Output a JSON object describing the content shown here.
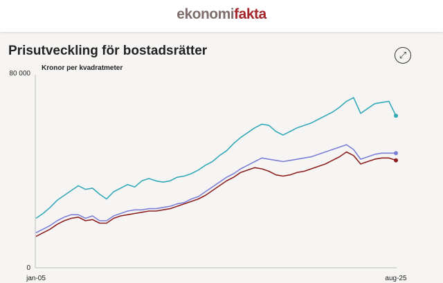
{
  "header": {
    "logo_part1": "ekonomi",
    "logo_part2": "fakta"
  },
  "chart_data": {
    "type": "line",
    "title": "Prisutveckling för bostadsrätter",
    "ylabel": "Kronor per kvadratmeter",
    "ylim": [
      0,
      80000
    ],
    "yticks": [
      "0",
      "80 000"
    ],
    "xticks": [
      "jan-05",
      "aug-25"
    ],
    "grid": false,
    "colors": [
      "#35a8b8",
      "#7b7fd6",
      "#8b1e1e"
    ],
    "series": [
      {
        "values": [
          20500,
          22500,
          25000,
          28000,
          30000,
          32000,
          34000,
          32500,
          33000,
          30500,
          28500,
          31500,
          33000,
          34500,
          33500,
          36000,
          37000,
          36000,
          35500,
          36000,
          37500,
          38000,
          39000,
          40500,
          42500,
          44000,
          46500,
          48500,
          51500,
          54000,
          56000,
          58000,
          59500,
          59000,
          56500,
          55000,
          56500,
          58000,
          59000,
          60000,
          61500,
          63000,
          64500,
          66500,
          69000,
          70500,
          64000,
          66000,
          68000,
          68500,
          69000,
          63000
        ]
      },
      {
        "values": [
          14500,
          16000,
          17500,
          19500,
          21000,
          22000,
          22000,
          20500,
          21500,
          19500,
          19500,
          21500,
          22500,
          23500,
          24000,
          24000,
          24500,
          24500,
          25000,
          25500,
          26500,
          27000,
          28500,
          29500,
          31500,
          33500,
          35500,
          37500,
          39000,
          41000,
          42500,
          44000,
          45500,
          45000,
          44500,
          44000,
          44500,
          45000,
          45500,
          46000,
          47000,
          48000,
          49000,
          50000,
          51000,
          49000,
          45000,
          46000,
          47000,
          47500,
          47500,
          47500
        ]
      },
      {
        "values": [
          13000,
          14500,
          16000,
          18000,
          19500,
          20500,
          21000,
          19500,
          20000,
          18500,
          18500,
          20500,
          21500,
          22000,
          22500,
          23000,
          23500,
          23500,
          24000,
          24500,
          25500,
          26500,
          27500,
          28500,
          30000,
          32000,
          34000,
          36000,
          37500,
          39500,
          40500,
          41500,
          41000,
          40000,
          38500,
          38000,
          38500,
          39500,
          40000,
          41000,
          42000,
          43000,
          44500,
          46000,
          48000,
          46500,
          43000,
          44000,
          45000,
          45500,
          45500,
          44500
        ]
      }
    ]
  }
}
